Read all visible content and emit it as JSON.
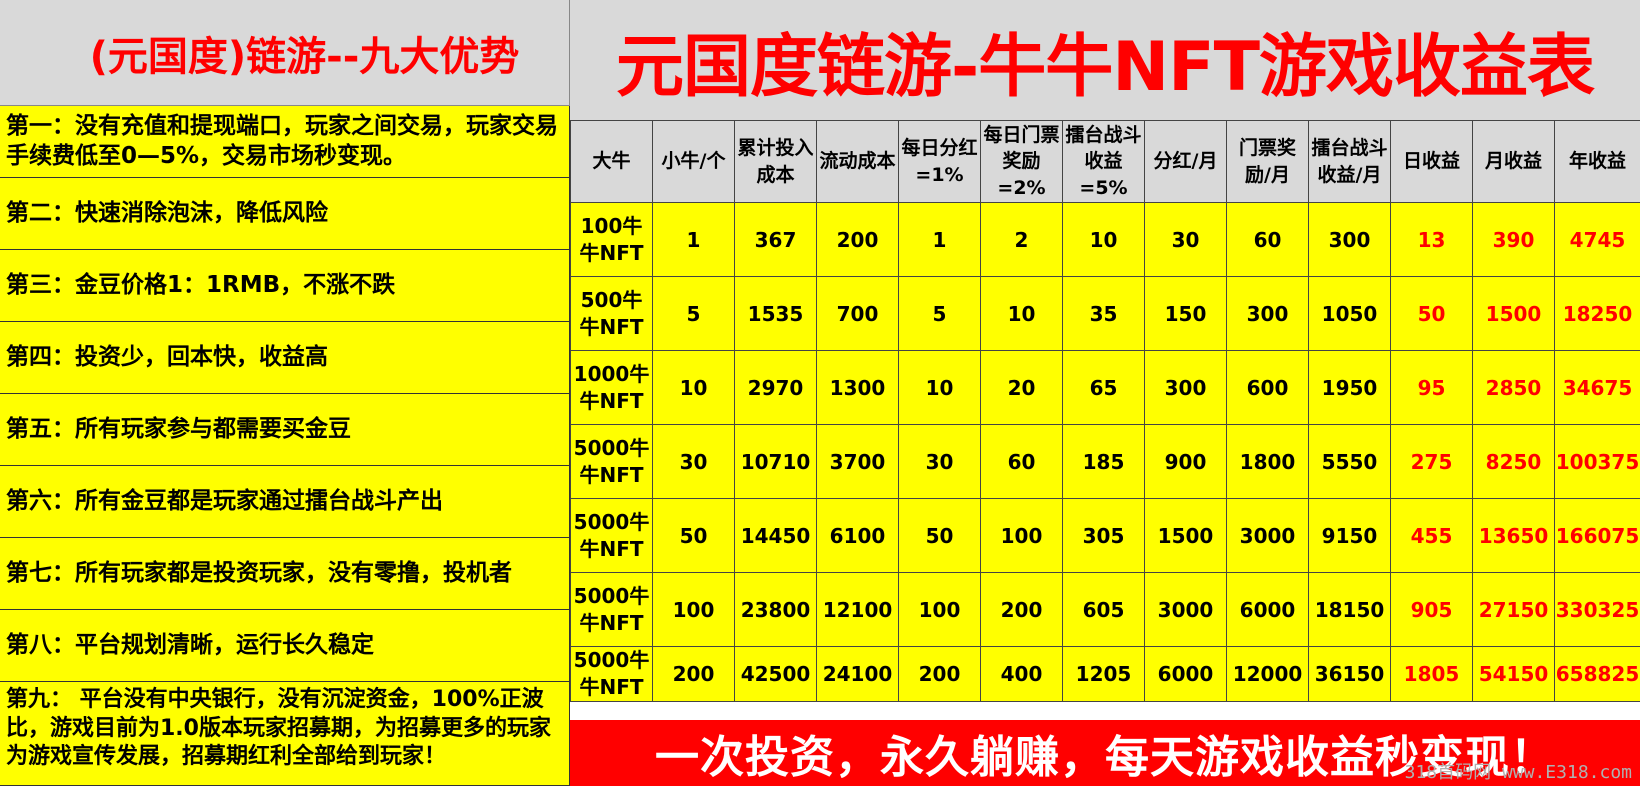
{
  "left": {
    "title": "(元国度)链游--九大优势",
    "advantages": [
      "第一：没有充值和提现端口，玩家之间交易，玩家交易手续费低至0—5%，交易市场秒变现。",
      "第二：快速消除泡沫，降低风险",
      "第三：金豆价格1：1RMB，不涨不跌",
      "第四：投资少，回本快，收益高",
      "第五：所有玩家参与都需要买金豆",
      "第六：所有金豆都是玩家通过擂台战斗产出",
      "第七：所有玩家都是投资玩家，没有零撸，投机者",
      "第八：平台规划清晰，运行长久稳定",
      "第九： 平台没有中央银行，没有沉淀资金，100%正波比，游戏目前为1.0版本玩家招募期，为招募更多的玩家为游戏宣传发展，招募期红利全部给到玩家！"
    ]
  },
  "right": {
    "title": "元国度链游-牛牛NFT游戏收益表",
    "headers": [
      "大牛",
      "小牛/个",
      "累计投入成本",
      "流动成本",
      "每日分红=1%",
      "每日门票奖励=2%",
      "擂台战斗收益=5%",
      "分红/月",
      "门票奖励/月",
      "擂台战斗收益/月",
      "日收益",
      "月收益",
      "年收益"
    ],
    "rows": [
      [
        "100牛牛NFT",
        "1",
        "367",
        "200",
        "1",
        "2",
        "10",
        "30",
        "60",
        "300",
        "13",
        "390",
        "4745"
      ],
      [
        "500牛牛NFT",
        "5",
        "1535",
        "700",
        "5",
        "10",
        "35",
        "150",
        "300",
        "1050",
        "50",
        "1500",
        "18250"
      ],
      [
        "1000牛牛NFT",
        "10",
        "2970",
        "1300",
        "10",
        "20",
        "65",
        "300",
        "600",
        "1950",
        "95",
        "2850",
        "34675"
      ],
      [
        "5000牛牛NFT",
        "30",
        "10710",
        "3700",
        "30",
        "60",
        "185",
        "900",
        "1800",
        "5550",
        "275",
        "8250",
        "100375"
      ],
      [
        "5000牛牛NFT",
        "50",
        "14450",
        "6100",
        "50",
        "100",
        "305",
        "1500",
        "3000",
        "9150",
        "455",
        "13650",
        "166075"
      ],
      [
        "5000牛牛NFT",
        "100",
        "23800",
        "12100",
        "100",
        "200",
        "605",
        "3000",
        "6000",
        "18150",
        "905",
        "27150",
        "330325"
      ],
      [
        "5000牛牛NFT",
        "200",
        "42500",
        "24100",
        "200",
        "400",
        "1205",
        "6000",
        "12000",
        "36150",
        "1805",
        "54150",
        "658825"
      ]
    ],
    "slogan": "一次投资，永久躺赚，每天游戏收益秒变现！"
  },
  "watermark": "318首码网 www.E318.com",
  "colors": {
    "title_red": "#ff0000",
    "cell_yellow": "#ffff00",
    "header_grey": "#d9d9d9",
    "banner_red": "#ff0000"
  }
}
